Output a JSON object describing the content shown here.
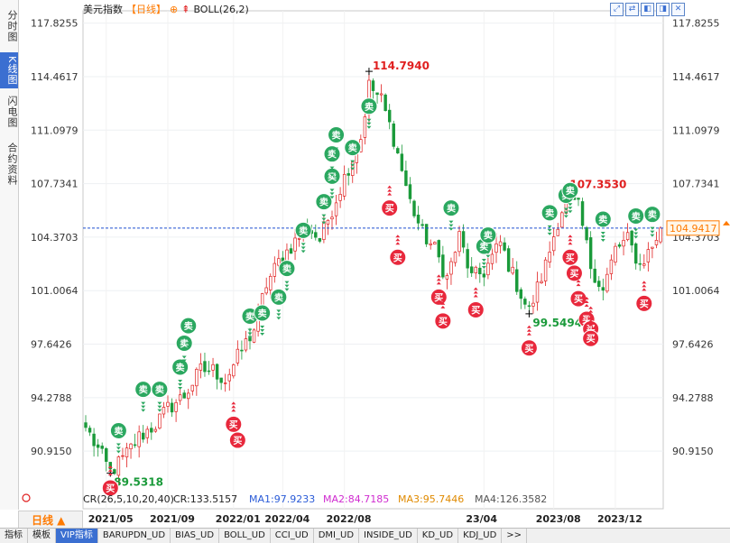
{
  "left_tabs": [
    {
      "label": "分时图",
      "active": false
    },
    {
      "label": "K线图",
      "active": true
    },
    {
      "label": "闪电图",
      "active": false
    },
    {
      "label": "合约资料",
      "active": false
    }
  ],
  "header": {
    "name": "美元指数",
    "period": "【日线】",
    "period_icon": "⊕",
    "indicator_icon": "⇞",
    "indicator": "BOLL(26,2)"
  },
  "toolbar_buttons": [
    "⤢",
    "⇄",
    "◧",
    "◨",
    "✕"
  ],
  "period_label": "日线 ▲",
  "bottom_tabs": [
    "指标",
    "模板",
    "VIP指标",
    "BARUPDN_UD",
    "BIAS_UD",
    "BOLL_UD",
    "CCI_UD",
    "DMI_UD",
    "INSIDE_UD",
    "KD_UD",
    "KDJ_UD",
    ">>"
  ],
  "bottom_active": "VIP指标",
  "indicator_line": {
    "prefix": "CR(26,5,10,20,40)",
    "cr": "CR:133.5157",
    "ma1": "MA1:97.9233",
    "ma2": "MA2:84.7185",
    "ma3": "MA3:95.7446",
    "ma4": "MA4:126.3582"
  },
  "colors": {
    "up": "#e02020",
    "down": "#1a9a3a",
    "buy": "#e8283c",
    "sell": "#2ba860",
    "price_line": "#1e4fd1",
    "accent": "#ff7a00"
  },
  "chart_data": {
    "type": "candlestick",
    "title": "美元指数",
    "y_ticks": [
      "117.8255",
      "114.4617",
      "111.0979",
      "107.7341",
      "104.3703",
      "101.0064",
      "97.6426",
      "94.2788",
      "90.9150"
    ],
    "ylim": [
      88.2,
      118.6
    ],
    "x_ticks": [
      "2021/05",
      "2021/09",
      "2022/01",
      "2022/04",
      "2022/08",
      "23/04",
      "2023/08",
      "2023/12"
    ],
    "x_tick_positions": [
      5,
      20,
      36,
      48,
      63,
      97,
      114,
      129
    ],
    "n_points": 141,
    "current_price": "104.9417",
    "annotations": [
      {
        "label": "89.5318",
        "x": 6,
        "y": 89.5318,
        "color": "#1a9a3a"
      },
      {
        "label": "114.7940",
        "x": 69,
        "y": 114.794,
        "color": "#e02020"
      },
      {
        "label": "99.5494",
        "x": 108,
        "y": 99.5494,
        "color": "#1a9a3a"
      },
      {
        "label": "107.3530",
        "x": 117,
        "y": 107.353,
        "color": "#e02020"
      }
    ],
    "close_anchors": [
      {
        "x": 0,
        "y": 92.4
      },
      {
        "x": 3,
        "y": 91.0
      },
      {
        "x": 6,
        "y": 89.6
      },
      {
        "x": 9,
        "y": 90.4
      },
      {
        "x": 13,
        "y": 91.8
      },
      {
        "x": 17,
        "y": 92.6
      },
      {
        "x": 20,
        "y": 93.6
      },
      {
        "x": 24,
        "y": 94.4
      },
      {
        "x": 28,
        "y": 96.0
      },
      {
        "x": 31,
        "y": 96.0
      },
      {
        "x": 34,
        "y": 95.4
      },
      {
        "x": 37,
        "y": 96.8
      },
      {
        "x": 41,
        "y": 98.6
      },
      {
        "x": 44,
        "y": 101.4
      },
      {
        "x": 47,
        "y": 102.8
      },
      {
        "x": 50,
        "y": 103.8
      },
      {
        "x": 54,
        "y": 105.0
      },
      {
        "x": 57,
        "y": 104.2
      },
      {
        "x": 61,
        "y": 106.8
      },
      {
        "x": 64,
        "y": 108.8
      },
      {
        "x": 67,
        "y": 110.6
      },
      {
        "x": 69,
        "y": 113.9
      },
      {
        "x": 72,
        "y": 113.0
      },
      {
        "x": 75,
        "y": 110.6
      },
      {
        "x": 79,
        "y": 106.6
      },
      {
        "x": 82,
        "y": 104.6
      },
      {
        "x": 85,
        "y": 103.6
      },
      {
        "x": 88,
        "y": 101.8
      },
      {
        "x": 91,
        "y": 104.4
      },
      {
        "x": 94,
        "y": 101.8
      },
      {
        "x": 97,
        "y": 102.2
      },
      {
        "x": 101,
        "y": 104.0
      },
      {
        "x": 104,
        "y": 102.0
      },
      {
        "x": 107,
        "y": 100.2
      },
      {
        "x": 108,
        "y": 99.7
      },
      {
        "x": 112,
        "y": 102.6
      },
      {
        "x": 115,
        "y": 105.4
      },
      {
        "x": 117,
        "y": 106.8
      },
      {
        "x": 120,
        "y": 106.2
      },
      {
        "x": 123,
        "y": 102.6
      },
      {
        "x": 126,
        "y": 101.0
      },
      {
        "x": 129,
        "y": 103.6
      },
      {
        "x": 132,
        "y": 104.2
      },
      {
        "x": 135,
        "y": 102.6
      },
      {
        "x": 138,
        "y": 103.8
      },
      {
        "x": 140,
        "y": 104.9417
      }
    ],
    "signals": [
      {
        "type": "buy",
        "x": 6,
        "y": 88.6
      },
      {
        "type": "sell",
        "x": 8,
        "y": 92.2
      },
      {
        "type": "sell",
        "x": 14,
        "y": 94.8
      },
      {
        "type": "sell",
        "x": 18,
        "y": 94.8
      },
      {
        "type": "sell",
        "x": 23,
        "y": 96.2
      },
      {
        "type": "sell",
        "x": 24,
        "y": 97.7
      },
      {
        "type": "sell",
        "x": 25,
        "y": 98.8
      },
      {
        "type": "buy",
        "x": 36,
        "y": 92.6
      },
      {
        "type": "buy",
        "x": 37,
        "y": 91.6
      },
      {
        "type": "sell",
        "x": 40,
        "y": 99.4
      },
      {
        "type": "sell",
        "x": 43,
        "y": 99.6
      },
      {
        "type": "sell",
        "x": 47,
        "y": 100.6
      },
      {
        "type": "sell",
        "x": 49,
        "y": 102.4
      },
      {
        "type": "sell",
        "x": 53,
        "y": 104.8
      },
      {
        "type": "sell",
        "x": 58,
        "y": 106.6
      },
      {
        "type": "sell",
        "x": 60,
        "y": 108.2
      },
      {
        "type": "sell",
        "x": 60,
        "y": 109.6
      },
      {
        "type": "sell",
        "x": 61,
        "y": 110.8
      },
      {
        "type": "sell",
        "x": 65,
        "y": 110.0
      },
      {
        "type": "sell",
        "x": 69,
        "y": 112.6
      },
      {
        "type": "buy",
        "x": 74,
        "y": 106.2
      },
      {
        "type": "buy",
        "x": 76,
        "y": 103.1
      },
      {
        "type": "buy",
        "x": 86,
        "y": 100.6
      },
      {
        "type": "buy",
        "x": 87,
        "y": 99.1
      },
      {
        "type": "sell",
        "x": 89,
        "y": 106.2
      },
      {
        "type": "sell",
        "x": 97,
        "y": 103.8
      },
      {
        "type": "sell",
        "x": 98,
        "y": 104.5
      },
      {
        "type": "buy",
        "x": 95,
        "y": 99.8
      },
      {
        "type": "buy",
        "x": 108,
        "y": 97.4
      },
      {
        "type": "sell",
        "x": 113,
        "y": 105.9
      },
      {
        "type": "sell",
        "x": 117,
        "y": 107.0
      },
      {
        "type": "sell",
        "x": 118,
        "y": 107.3
      },
      {
        "type": "buy",
        "x": 118,
        "y": 103.1
      },
      {
        "type": "buy",
        "x": 119,
        "y": 102.1
      },
      {
        "type": "buy",
        "x": 120,
        "y": 100.5
      },
      {
        "type": "buy",
        "x": 122,
        "y": 99.2
      },
      {
        "type": "buy",
        "x": 123,
        "y": 98.6
      },
      {
        "type": "buy",
        "x": 123,
        "y": 98.0
      },
      {
        "type": "sell",
        "x": 126,
        "y": 105.5
      },
      {
        "type": "sell",
        "x": 134,
        "y": 105.7
      },
      {
        "type": "sell",
        "x": 138,
        "y": 105.8
      },
      {
        "type": "buy",
        "x": 136,
        "y": 100.2
      }
    ]
  }
}
